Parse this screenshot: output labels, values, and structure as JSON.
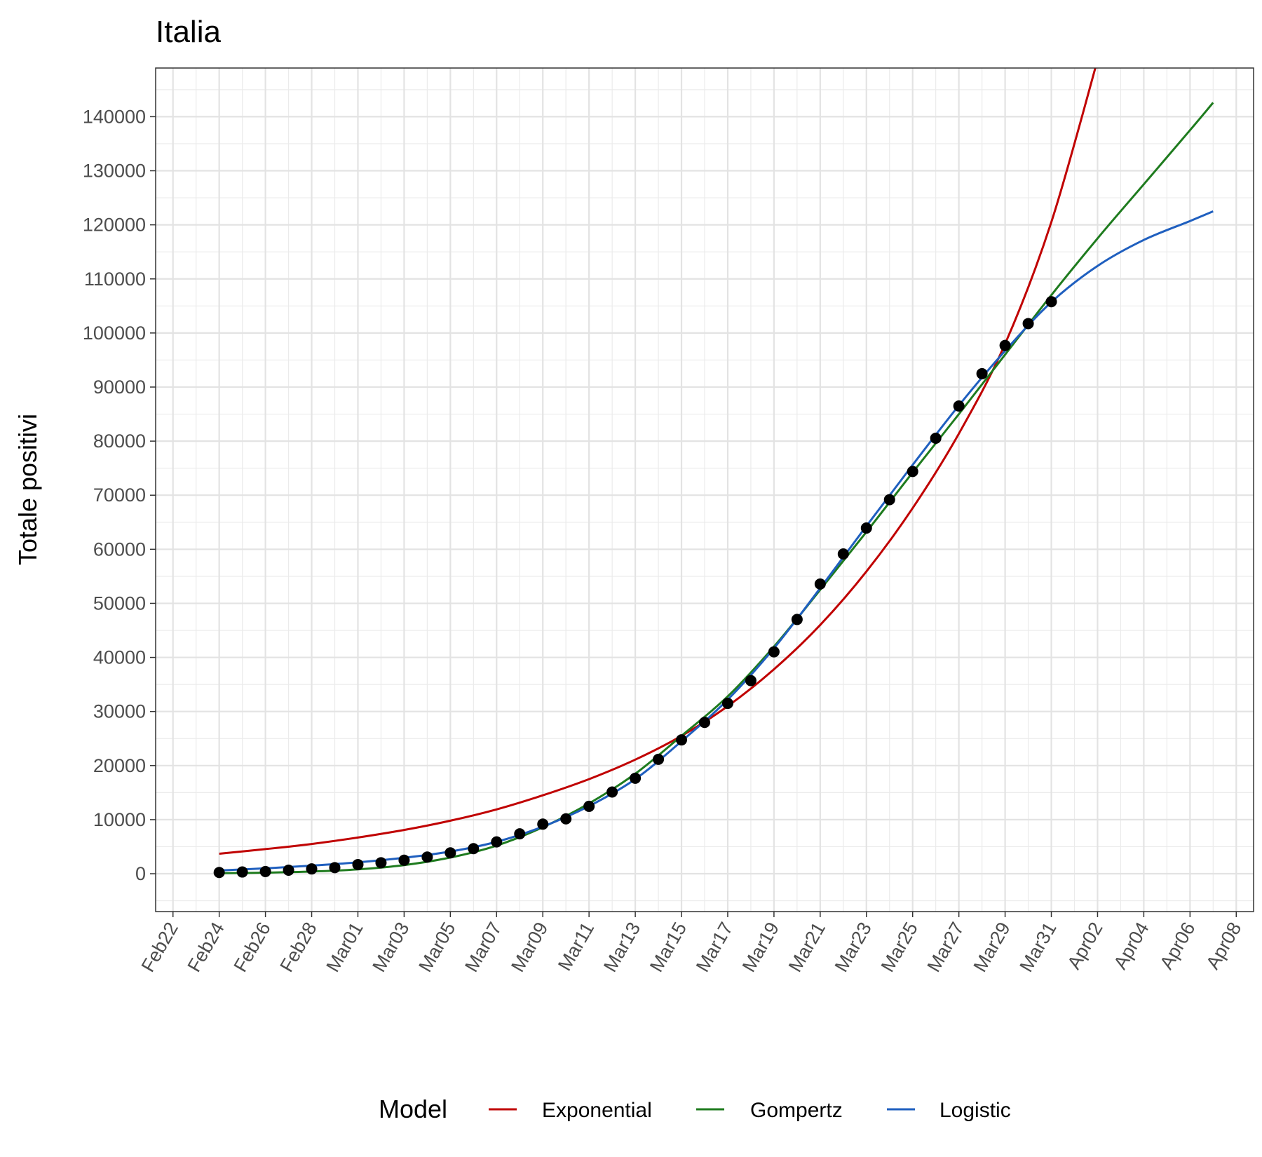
{
  "chart_data": {
    "type": "line",
    "title": "Italia",
    "xlabel": "",
    "ylabel": "Totale positivi",
    "xlim": [
      "2020-02-22",
      "2020-04-08"
    ],
    "ylim": [
      -7000,
      149000
    ],
    "grid": true,
    "x_tick_labels": [
      "Feb22",
      "Feb24",
      "Feb26",
      "Feb28",
      "Mar01",
      "Mar03",
      "Mar05",
      "Mar07",
      "Mar09",
      "Mar11",
      "Mar13",
      "Mar15",
      "Mar17",
      "Mar19",
      "Mar21",
      "Mar23",
      "Mar25",
      "Mar27",
      "Mar29",
      "Mar31",
      "Apr02",
      "Apr04",
      "Apr06",
      "Apr08"
    ],
    "y_ticks": [
      0,
      10000,
      20000,
      30000,
      40000,
      50000,
      60000,
      70000,
      80000,
      90000,
      100000,
      110000,
      120000,
      130000,
      140000
    ],
    "observed": {
      "x": [
        "2020-02-24",
        "2020-02-25",
        "2020-02-26",
        "2020-02-27",
        "2020-02-28",
        "2020-02-29",
        "2020-03-01",
        "2020-03-02",
        "2020-03-03",
        "2020-03-04",
        "2020-03-05",
        "2020-03-06",
        "2020-03-07",
        "2020-03-08",
        "2020-03-09",
        "2020-03-10",
        "2020-03-11",
        "2020-03-12",
        "2020-03-13",
        "2020-03-14",
        "2020-03-15",
        "2020-03-16",
        "2020-03-17",
        "2020-03-18",
        "2020-03-19",
        "2020-03-20",
        "2020-03-21",
        "2020-03-22",
        "2020-03-23",
        "2020-03-24",
        "2020-03-25",
        "2020-03-26",
        "2020-03-27",
        "2020-03-28",
        "2020-03-29",
        "2020-03-30",
        "2020-03-31"
      ],
      "y": [
        229,
        322,
        400,
        650,
        888,
        1128,
        1694,
        2036,
        2502,
        3089,
        3858,
        4636,
        5883,
        7375,
        9172,
        10149,
        12462,
        15113,
        17660,
        21157,
        24747,
        27980,
        31506,
        35713,
        41035,
        47021,
        53578,
        59138,
        63927,
        69176,
        74386,
        80539,
        86498,
        92472,
        97689,
        101739,
        105792
      ]
    },
    "series": [
      {
        "name": "Exponential",
        "color": "#c00000",
        "x": [
          "2020-02-24",
          "2020-02-26",
          "2020-02-28",
          "2020-03-01",
          "2020-03-03",
          "2020-03-05",
          "2020-03-07",
          "2020-03-09",
          "2020-03-11",
          "2020-03-13",
          "2020-03-15",
          "2020-03-17",
          "2020-03-19",
          "2020-03-21",
          "2020-03-23",
          "2020-03-25",
          "2020-03-27",
          "2020-03-29",
          "2020-03-31",
          "2020-04-02"
        ],
        "values": [
          3700,
          4550,
          5500,
          6700,
          8100,
          9800,
          11900,
          14500,
          17500,
          21100,
          25500,
          31000,
          37800,
          46000,
          55900,
          67600,
          81400,
          98000,
          120500,
          150500
        ]
      },
      {
        "name": "Gompertz",
        "color": "#1e7b1e",
        "x": [
          "2020-02-24",
          "2020-02-26",
          "2020-02-28",
          "2020-03-01",
          "2020-03-03",
          "2020-03-05",
          "2020-03-07",
          "2020-03-09",
          "2020-03-11",
          "2020-03-13",
          "2020-03-15",
          "2020-03-17",
          "2020-03-19",
          "2020-03-21",
          "2020-03-23",
          "2020-03-25",
          "2020-03-27",
          "2020-03-29",
          "2020-03-31",
          "2020-04-02",
          "2020-04-04",
          "2020-04-06",
          "2020-04-07"
        ],
        "values": [
          100,
          200,
          400,
          800,
          1600,
          3000,
          5200,
          8600,
          13000,
          18500,
          25500,
          32800,
          42000,
          52500,
          63200,
          74200,
          85000,
          96000,
          107000,
          117500,
          127500,
          137500,
          142600
        ]
      },
      {
        "name": "Logistic",
        "color": "#1f5fbf",
        "x": [
          "2020-02-24",
          "2020-02-26",
          "2020-02-28",
          "2020-03-01",
          "2020-03-03",
          "2020-03-05",
          "2020-03-07",
          "2020-03-09",
          "2020-03-11",
          "2020-03-13",
          "2020-03-15",
          "2020-03-17",
          "2020-03-19",
          "2020-03-21",
          "2020-03-23",
          "2020-03-25",
          "2020-03-27",
          "2020-03-29",
          "2020-03-31",
          "2020-04-02",
          "2020-04-04",
          "2020-04-06",
          "2020-04-07"
        ],
        "values": [
          600,
          1000,
          1500,
          2100,
          2950,
          4100,
          5900,
          8700,
          12500,
          17500,
          24500,
          32200,
          41700,
          52800,
          64300,
          75600,
          86600,
          96700,
          105700,
          112400,
          117200,
          120700,
          122500
        ]
      }
    ],
    "legend": {
      "title": "Model",
      "position": "bottom",
      "entries": [
        "Exponential",
        "Gompertz",
        "Logistic"
      ]
    }
  }
}
